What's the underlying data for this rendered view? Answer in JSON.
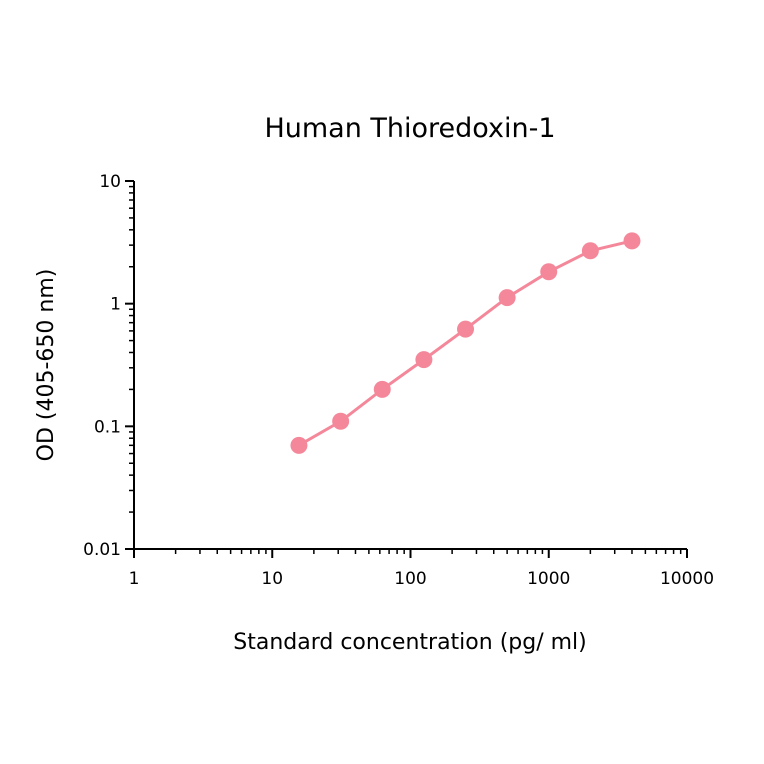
{
  "chart_data": {
    "type": "line",
    "title": "Human Thioredoxin-1",
    "xlabel": "Standard concentration (pg/ ml)",
    "ylabel": "OD (405-650 nm)",
    "xscale": "log",
    "yscale": "log",
    "xlim": [
      1,
      10000
    ],
    "ylim": [
      0.01,
      10
    ],
    "xticks": [
      1,
      10,
      100,
      1000,
      10000
    ],
    "xtick_labels": [
      "1",
      "10",
      "100",
      "1000",
      "10000"
    ],
    "yticks": [
      0.01,
      0.1,
      1,
      10
    ],
    "ytick_labels": [
      "0.01",
      "0.1",
      "1",
      "10"
    ],
    "grid": false,
    "series": [
      {
        "color": "#f4889a",
        "x": [
          15.6,
          31.25,
          62.5,
          125,
          250,
          500,
          1000,
          2000,
          4000
        ],
        "y": [
          0.07,
          0.11,
          0.2,
          0.35,
          0.62,
          1.12,
          1.82,
          2.7,
          3.25
        ]
      }
    ]
  }
}
